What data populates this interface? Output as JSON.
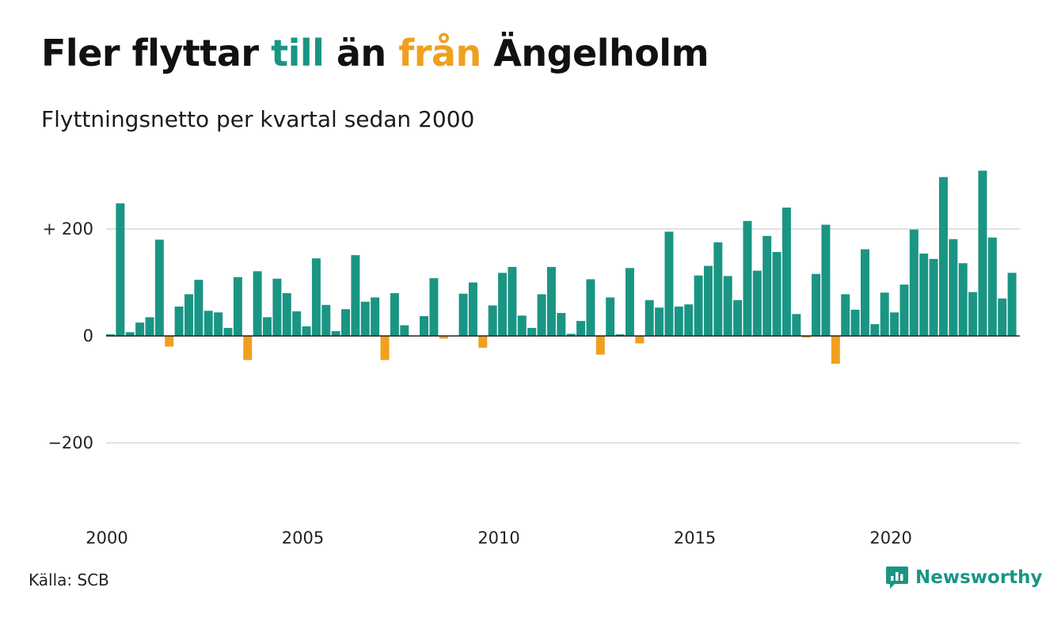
{
  "header": {
    "title_part1": "Fler flyttar ",
    "title_till": "till",
    "title_part2": " än ",
    "title_fran": "från",
    "title_part3": " Ängelholm",
    "subtitle": "Flyttningsnetto per kvartal sedan 2000"
  },
  "footer": {
    "source": "Källa: SCB",
    "brand": "Newsworthy"
  },
  "colors": {
    "positive": "#1a9584",
    "negative": "#f0a01e",
    "grid": "#e2e2e2",
    "zero_line": "#222222"
  },
  "chart_data": {
    "type": "bar",
    "title": "Fler flyttar till än från Ängelholm",
    "subtitle": "Flyttningsnetto per kvartal sedan 2000",
    "x_start": "2000 Q1",
    "frequency": "quarterly",
    "ylim": [
      -300,
      310
    ],
    "yticks": [
      {
        "value": 200,
        "label": "+ 200"
      },
      {
        "value": 0,
        "label": "0"
      },
      {
        "value": -200,
        "label": "−200"
      }
    ],
    "xticks": [
      {
        "index": 0,
        "label": "2000"
      },
      {
        "index": 20,
        "label": "2005"
      },
      {
        "index": 40,
        "label": "2010"
      },
      {
        "index": 60,
        "label": "2015"
      },
      {
        "index": 80,
        "label": "2020"
      }
    ],
    "grid": true,
    "values": [
      3,
      248,
      7,
      25,
      35,
      180,
      -20,
      55,
      78,
      105,
      47,
      44,
      15,
      110,
      -45,
      121,
      35,
      107,
      80,
      46,
      18,
      145,
      58,
      9,
      50,
      151,
      64,
      72,
      -45,
      80,
      20,
      0,
      37,
      108,
      -5,
      0,
      79,
      100,
      -22,
      57,
      118,
      129,
      38,
      15,
      78,
      129,
      43,
      4,
      28,
      106,
      -35,
      72,
      3,
      127,
      -14,
      67,
      53,
      195,
      55,
      59,
      113,
      131,
      175,
      112,
      67,
      215,
      122,
      187,
      157,
      240,
      41,
      -3,
      116,
      208,
      -52,
      78,
      49,
      162,
      22,
      81,
      44,
      96,
      199,
      154,
      144,
      297,
      181,
      136,
      82,
      309,
      184,
      70,
      118
    ]
  }
}
